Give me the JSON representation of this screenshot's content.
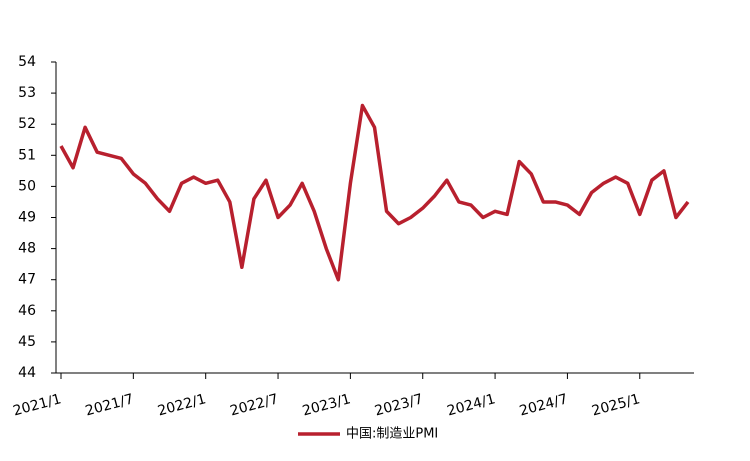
{
  "chart_data": {
    "type": "line",
    "categories": [
      "2021/1",
      null,
      null,
      null,
      null,
      null,
      "2021/7",
      null,
      null,
      null,
      null,
      null,
      "2022/1",
      null,
      null,
      null,
      null,
      null,
      "2022/7",
      null,
      null,
      null,
      null,
      null,
      "2023/1",
      null,
      null,
      null,
      null,
      null,
      "2023/7",
      null,
      null,
      null,
      null,
      null,
      "2024/1",
      null,
      null,
      null,
      null,
      null,
      "2024/7",
      null,
      null,
      null,
      null,
      null,
      "2025/1",
      null,
      null,
      null,
      null
    ],
    "series": [
      {
        "name": "中国:制造业PMI",
        "color": "#b8202e",
        "values": [
          51.3,
          50.6,
          51.9,
          51.1,
          51.0,
          50.9,
          50.4,
          50.1,
          49.6,
          49.2,
          50.1,
          50.3,
          50.1,
          50.2,
          49.5,
          47.4,
          49.6,
          50.2,
          49.0,
          49.4,
          50.1,
          49.2,
          48.0,
          47.0,
          50.1,
          52.6,
          51.9,
          49.2,
          48.8,
          49.0,
          49.3,
          49.7,
          50.2,
          49.5,
          49.4,
          49.0,
          49.2,
          49.1,
          50.8,
          50.4,
          49.5,
          49.5,
          49.4,
          49.1,
          49.8,
          50.1,
          50.3,
          50.1,
          49.1,
          50.2,
          50.5,
          49.0,
          49.5
        ]
      }
    ],
    "ylim": [
      44,
      54
    ],
    "yticks": [
      44,
      45,
      46,
      47,
      48,
      49,
      50,
      51,
      52,
      53,
      54
    ],
    "grid": false,
    "legend": "bottom"
  }
}
